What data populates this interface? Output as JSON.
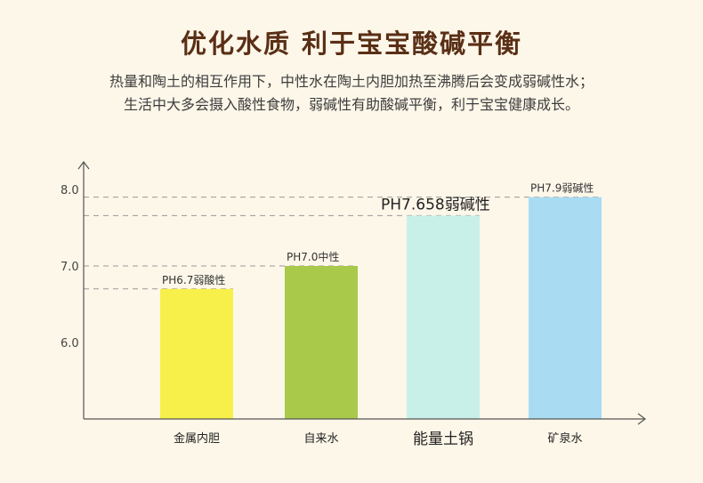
{
  "header": {
    "title": "优化水质 利于宝宝酸碱平衡",
    "desc_line1": "热量和陶土的相互作用下，中性水在陶土内胆加热至沸腾后会变成弱碱性水；",
    "desc_line2": "生活中大多会摄入酸性食物，弱碱性有助酸碱平衡，利于宝宝健康成长。"
  },
  "chart_data": {
    "type": "bar",
    "categories": [
      "金属内胆",
      "自来水",
      "能量土锅",
      "矿泉水"
    ],
    "values": [
      6.7,
      7.0,
      7.658,
      7.9
    ],
    "data_labels": [
      "PH6.7弱酸性",
      "PH7.0中性",
      "PH7.658弱碱性",
      "PH7.9弱碱性"
    ],
    "y_ticks": [
      "6.0",
      "7.0",
      "8.0"
    ],
    "ylim": [
      5.0,
      8.0
    ],
    "highlight_index": 2,
    "colors": [
      "#f7f04a",
      "#a9c94a",
      "#c9f0e8",
      "#a9dcf2"
    ],
    "axis_color": "#555555",
    "guide_color": "#999999"
  }
}
